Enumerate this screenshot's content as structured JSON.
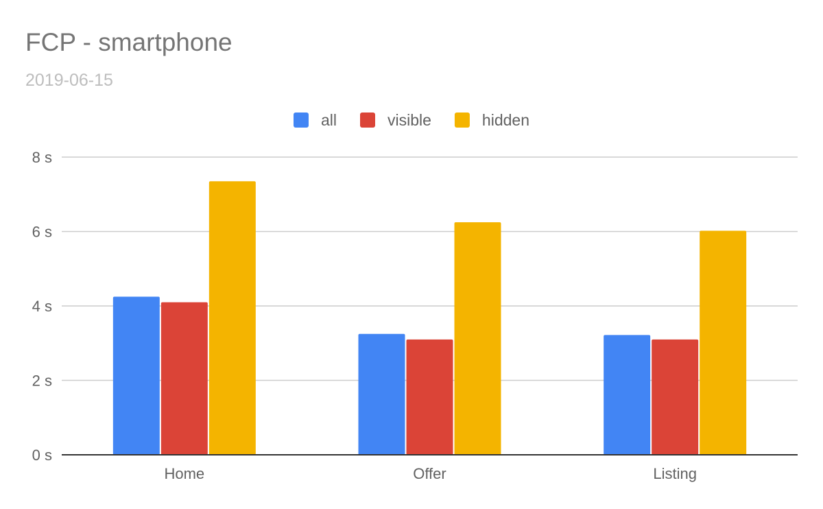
{
  "chart_data": {
    "type": "bar",
    "title": "FCP - smartphone",
    "subtitle": "2019-06-15",
    "xlabel": "",
    "ylabel": "",
    "categories": [
      "Home",
      "Offer",
      "Listing"
    ],
    "series": [
      {
        "name": "all",
        "color": "#4285f4",
        "values": [
          4.25,
          3.25,
          3.22
        ]
      },
      {
        "name": "visible",
        "color": "#db4437",
        "values": [
          4.1,
          3.1,
          3.1
        ]
      },
      {
        "name": "hidden",
        "color": "#f4b400",
        "values": [
          7.35,
          6.25,
          6.02
        ]
      }
    ],
    "ylim": [
      0,
      8
    ],
    "y_ticks": [
      0,
      2,
      4,
      6,
      8
    ],
    "y_tick_labels": [
      "0 s",
      "2 s",
      "4 s",
      "6 s",
      "8 s"
    ],
    "grid": true,
    "legend_position": "top-center"
  }
}
